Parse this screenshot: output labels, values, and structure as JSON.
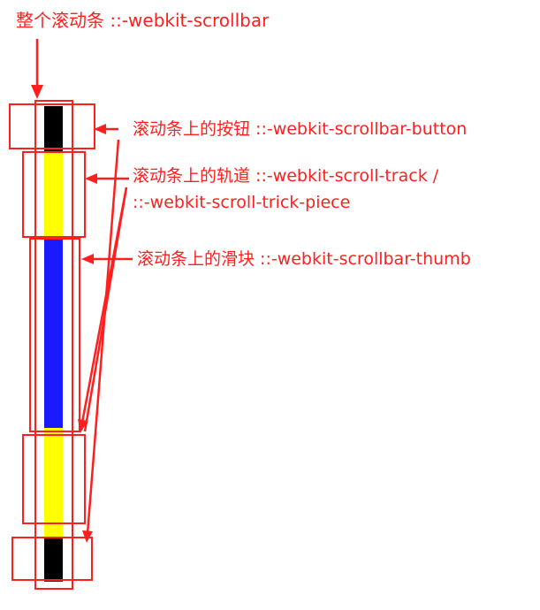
{
  "labels": {
    "scrollbar": "整个滚动条 ::-webkit-scrollbar",
    "button": "滚动条上的按钮 ::-webkit-scrollbar-button",
    "track_line1": "滚动条上的轨道 ::-webkit-scroll-track /",
    "track_line2": "::-webkit-scroll-trick-piece",
    "thumb": "滚动条上的滑块 ::-webkit-scrollbar-thumb"
  },
  "colors": {
    "annotation": "#ff1f1f",
    "button": "#000000",
    "track": "#ffff00",
    "thumb": "#1a1aff"
  }
}
